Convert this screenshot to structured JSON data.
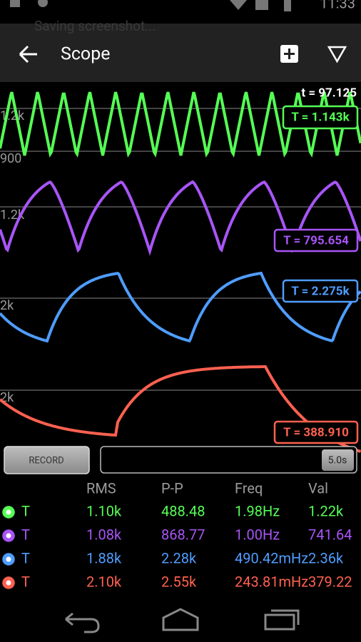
{
  "status_bar": {
    "time": "11:33",
    "notification": "Saving screenshot..."
  },
  "toolbar": {
    "title": "Scope"
  },
  "scope": {
    "time_label": "t = 97.125",
    "traces": [
      {
        "axis_labels": [
          "1.2k",
          "900"
        ],
        "value_label": "T = 1.143k",
        "color": "#55ff55"
      },
      {
        "axis_labels": [
          "1.2k"
        ],
        "value_label": "T = 795.654",
        "color": "#a855f7"
      },
      {
        "axis_labels": [
          "2k"
        ],
        "value_label": "T = 2.275k",
        "color": "#4f9dff"
      },
      {
        "axis_labels": [
          "2k"
        ],
        "value_label": "T = 388.910",
        "color": "#ff6150"
      }
    ]
  },
  "controls": {
    "record": "RECORD",
    "duration": "5.0s"
  },
  "table": {
    "headers": [
      "RMS",
      "P-P",
      "Freq",
      "Val"
    ],
    "rows": [
      {
        "name": "T",
        "cells": [
          "1.10k",
          "488.48",
          "1.98Hz",
          "1.22k"
        ]
      },
      {
        "name": "T",
        "cells": [
          "1.08k",
          "868.77",
          "1.00Hz",
          "741.64"
        ]
      },
      {
        "name": "T",
        "cells": [
          "1.88k",
          "2.28k",
          "490.42mHz",
          "2.36k"
        ]
      },
      {
        "name": "T",
        "cells": [
          "2.10k",
          "2.55k",
          "243.81mHz",
          "379.22"
        ]
      }
    ]
  }
}
